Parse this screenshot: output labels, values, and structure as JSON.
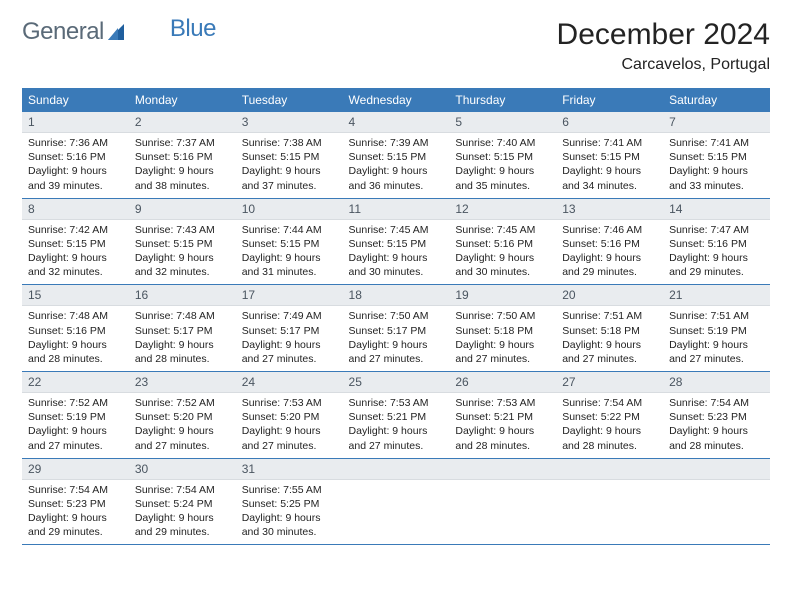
{
  "brand": {
    "part1": "General",
    "part2": "Blue"
  },
  "title": "December 2024",
  "location": "Carcavelos, Portugal",
  "colors": {
    "header_bg": "#3a7ab8",
    "header_fg": "#ffffff",
    "daynum_bg": "#e9ecef",
    "daynum_fg": "#4a5560",
    "border": "#3a7ab8",
    "text": "#232323",
    "logo_gray": "#5a6a78",
    "logo_blue": "#3a7ab8"
  },
  "weekdays": [
    "Sunday",
    "Monday",
    "Tuesday",
    "Wednesday",
    "Thursday",
    "Friday",
    "Saturday"
  ],
  "weeks": [
    [
      {
        "num": "1",
        "sunrise": "Sunrise: 7:36 AM",
        "sunset": "Sunset: 5:16 PM",
        "daylight1": "Daylight: 9 hours",
        "daylight2": "and 39 minutes."
      },
      {
        "num": "2",
        "sunrise": "Sunrise: 7:37 AM",
        "sunset": "Sunset: 5:16 PM",
        "daylight1": "Daylight: 9 hours",
        "daylight2": "and 38 minutes."
      },
      {
        "num": "3",
        "sunrise": "Sunrise: 7:38 AM",
        "sunset": "Sunset: 5:15 PM",
        "daylight1": "Daylight: 9 hours",
        "daylight2": "and 37 minutes."
      },
      {
        "num": "4",
        "sunrise": "Sunrise: 7:39 AM",
        "sunset": "Sunset: 5:15 PM",
        "daylight1": "Daylight: 9 hours",
        "daylight2": "and 36 minutes."
      },
      {
        "num": "5",
        "sunrise": "Sunrise: 7:40 AM",
        "sunset": "Sunset: 5:15 PM",
        "daylight1": "Daylight: 9 hours",
        "daylight2": "and 35 minutes."
      },
      {
        "num": "6",
        "sunrise": "Sunrise: 7:41 AM",
        "sunset": "Sunset: 5:15 PM",
        "daylight1": "Daylight: 9 hours",
        "daylight2": "and 34 minutes."
      },
      {
        "num": "7",
        "sunrise": "Sunrise: 7:41 AM",
        "sunset": "Sunset: 5:15 PM",
        "daylight1": "Daylight: 9 hours",
        "daylight2": "and 33 minutes."
      }
    ],
    [
      {
        "num": "8",
        "sunrise": "Sunrise: 7:42 AM",
        "sunset": "Sunset: 5:15 PM",
        "daylight1": "Daylight: 9 hours",
        "daylight2": "and 32 minutes."
      },
      {
        "num": "9",
        "sunrise": "Sunrise: 7:43 AM",
        "sunset": "Sunset: 5:15 PM",
        "daylight1": "Daylight: 9 hours",
        "daylight2": "and 32 minutes."
      },
      {
        "num": "10",
        "sunrise": "Sunrise: 7:44 AM",
        "sunset": "Sunset: 5:15 PM",
        "daylight1": "Daylight: 9 hours",
        "daylight2": "and 31 minutes."
      },
      {
        "num": "11",
        "sunrise": "Sunrise: 7:45 AM",
        "sunset": "Sunset: 5:15 PM",
        "daylight1": "Daylight: 9 hours",
        "daylight2": "and 30 minutes."
      },
      {
        "num": "12",
        "sunrise": "Sunrise: 7:45 AM",
        "sunset": "Sunset: 5:16 PM",
        "daylight1": "Daylight: 9 hours",
        "daylight2": "and 30 minutes."
      },
      {
        "num": "13",
        "sunrise": "Sunrise: 7:46 AM",
        "sunset": "Sunset: 5:16 PM",
        "daylight1": "Daylight: 9 hours",
        "daylight2": "and 29 minutes."
      },
      {
        "num": "14",
        "sunrise": "Sunrise: 7:47 AM",
        "sunset": "Sunset: 5:16 PM",
        "daylight1": "Daylight: 9 hours",
        "daylight2": "and 29 minutes."
      }
    ],
    [
      {
        "num": "15",
        "sunrise": "Sunrise: 7:48 AM",
        "sunset": "Sunset: 5:16 PM",
        "daylight1": "Daylight: 9 hours",
        "daylight2": "and 28 minutes."
      },
      {
        "num": "16",
        "sunrise": "Sunrise: 7:48 AM",
        "sunset": "Sunset: 5:17 PM",
        "daylight1": "Daylight: 9 hours",
        "daylight2": "and 28 minutes."
      },
      {
        "num": "17",
        "sunrise": "Sunrise: 7:49 AM",
        "sunset": "Sunset: 5:17 PM",
        "daylight1": "Daylight: 9 hours",
        "daylight2": "and 27 minutes."
      },
      {
        "num": "18",
        "sunrise": "Sunrise: 7:50 AM",
        "sunset": "Sunset: 5:17 PM",
        "daylight1": "Daylight: 9 hours",
        "daylight2": "and 27 minutes."
      },
      {
        "num": "19",
        "sunrise": "Sunrise: 7:50 AM",
        "sunset": "Sunset: 5:18 PM",
        "daylight1": "Daylight: 9 hours",
        "daylight2": "and 27 minutes."
      },
      {
        "num": "20",
        "sunrise": "Sunrise: 7:51 AM",
        "sunset": "Sunset: 5:18 PM",
        "daylight1": "Daylight: 9 hours",
        "daylight2": "and 27 minutes."
      },
      {
        "num": "21",
        "sunrise": "Sunrise: 7:51 AM",
        "sunset": "Sunset: 5:19 PM",
        "daylight1": "Daylight: 9 hours",
        "daylight2": "and 27 minutes."
      }
    ],
    [
      {
        "num": "22",
        "sunrise": "Sunrise: 7:52 AM",
        "sunset": "Sunset: 5:19 PM",
        "daylight1": "Daylight: 9 hours",
        "daylight2": "and 27 minutes."
      },
      {
        "num": "23",
        "sunrise": "Sunrise: 7:52 AM",
        "sunset": "Sunset: 5:20 PM",
        "daylight1": "Daylight: 9 hours",
        "daylight2": "and 27 minutes."
      },
      {
        "num": "24",
        "sunrise": "Sunrise: 7:53 AM",
        "sunset": "Sunset: 5:20 PM",
        "daylight1": "Daylight: 9 hours",
        "daylight2": "and 27 minutes."
      },
      {
        "num": "25",
        "sunrise": "Sunrise: 7:53 AM",
        "sunset": "Sunset: 5:21 PM",
        "daylight1": "Daylight: 9 hours",
        "daylight2": "and 27 minutes."
      },
      {
        "num": "26",
        "sunrise": "Sunrise: 7:53 AM",
        "sunset": "Sunset: 5:21 PM",
        "daylight1": "Daylight: 9 hours",
        "daylight2": "and 28 minutes."
      },
      {
        "num": "27",
        "sunrise": "Sunrise: 7:54 AM",
        "sunset": "Sunset: 5:22 PM",
        "daylight1": "Daylight: 9 hours",
        "daylight2": "and 28 minutes."
      },
      {
        "num": "28",
        "sunrise": "Sunrise: 7:54 AM",
        "sunset": "Sunset: 5:23 PM",
        "daylight1": "Daylight: 9 hours",
        "daylight2": "and 28 minutes."
      }
    ],
    [
      {
        "num": "29",
        "sunrise": "Sunrise: 7:54 AM",
        "sunset": "Sunset: 5:23 PM",
        "daylight1": "Daylight: 9 hours",
        "daylight2": "and 29 minutes."
      },
      {
        "num": "30",
        "sunrise": "Sunrise: 7:54 AM",
        "sunset": "Sunset: 5:24 PM",
        "daylight1": "Daylight: 9 hours",
        "daylight2": "and 29 minutes."
      },
      {
        "num": "31",
        "sunrise": "Sunrise: 7:55 AM",
        "sunset": "Sunset: 5:25 PM",
        "daylight1": "Daylight: 9 hours",
        "daylight2": "and 30 minutes."
      },
      {
        "empty": true
      },
      {
        "empty": true
      },
      {
        "empty": true
      },
      {
        "empty": true
      }
    ]
  ]
}
